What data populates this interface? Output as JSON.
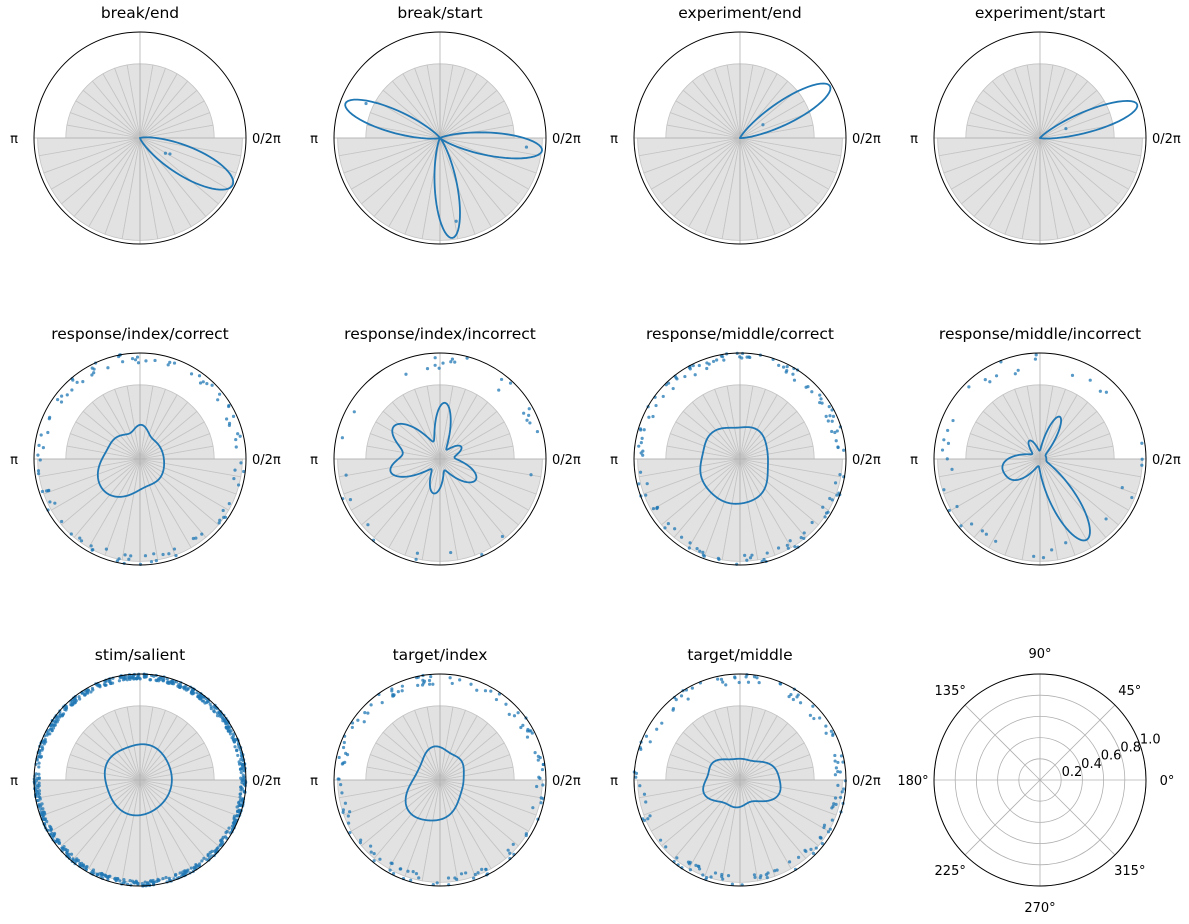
{
  "colors": {
    "kde_line": "#1f77b4",
    "points": "#1f77b4",
    "wedge_fill": "#e2e2e2",
    "wedge_edge": "#c4c4c4",
    "grid": "#b0b0b0",
    "axis_spine": "#000000"
  },
  "chart_data": [
    {
      "type": "polar-kde",
      "title": "break/end",
      "left_label": "π",
      "right_label": "0/2π",
      "peaks": [
        {
          "angle_deg": -27,
          "height": 0.98,
          "width_deg": 14
        }
      ],
      "points": [
        {
          "angle_deg": -28,
          "r": 0.32
        },
        {
          "angle_deg": -31,
          "r": 0.28
        }
      ]
    },
    {
      "type": "polar-kde",
      "title": "break/start",
      "left_label": "π",
      "right_label": "0/2π",
      "peaks": [
        {
          "angle_deg": 160,
          "height": 0.95,
          "width_deg": 11
        },
        {
          "angle_deg": -7,
          "height": 0.97,
          "width_deg": 11
        },
        {
          "angle_deg": -83,
          "height": 0.95,
          "width_deg": 11
        }
      ],
      "points": [
        {
          "angle_deg": 155,
          "r": 0.77
        },
        {
          "angle_deg": -6,
          "r": 0.82
        },
        {
          "angle_deg": -79,
          "r": 0.8
        }
      ]
    },
    {
      "type": "polar-kde",
      "title": "experiment/end",
      "left_label": "π",
      "right_label": "0/2π",
      "peaks": [
        {
          "angle_deg": 30,
          "height": 0.98,
          "width_deg": 11
        }
      ],
      "points": [
        {
          "angle_deg": 30,
          "r": 0.25
        }
      ]
    },
    {
      "type": "polar-kde",
      "title": "experiment/start",
      "left_label": "π",
      "right_label": "0/2π",
      "peaks": [
        {
          "angle_deg": 19,
          "height": 0.97,
          "width_deg": 10
        }
      ],
      "points": [
        {
          "angle_deg": 20,
          "r": 0.26
        }
      ]
    },
    {
      "type": "polar-kde",
      "title": "response/index/correct",
      "left_label": "π",
      "right_label": "0/2π",
      "base": 0.22,
      "peaks": [
        {
          "angle_deg": 200,
          "height": 0.15,
          "width_deg": 28
        },
        {
          "angle_deg": 235,
          "height": 0.14,
          "width_deg": 25
        },
        {
          "angle_deg": 88,
          "height": 0.1,
          "width_deg": 12
        },
        {
          "angle_deg": 140,
          "height": 0.07,
          "width_deg": 20
        },
        {
          "angle_deg": 310,
          "height": 0.04,
          "width_deg": 25
        }
      ],
      "scatter": {
        "count": 100,
        "seed": 11,
        "r_min": 0.9,
        "r_max": 1.0
      }
    },
    {
      "type": "polar-kde",
      "title": "response/index/incorrect",
      "left_label": "π",
      "right_label": "0/2π",
      "base": 0.05,
      "peaks": [
        {
          "angle_deg": 85,
          "height": 0.48,
          "width_deg": 12
        },
        {
          "angle_deg": 145,
          "height": 0.48,
          "width_deg": 18
        },
        {
          "angle_deg": 195,
          "height": 0.42,
          "width_deg": 16
        },
        {
          "angle_deg": 260,
          "height": 0.28,
          "width_deg": 15
        },
        {
          "angle_deg": 330,
          "height": 0.34,
          "width_deg": 18
        },
        {
          "angle_deg": 30,
          "height": 0.18,
          "width_deg": 14
        }
      ],
      "scatter": {
        "count": 32,
        "seed": 23,
        "r_min": 0.85,
        "r_max": 1.0
      }
    },
    {
      "type": "polar-kde",
      "title": "response/middle/correct",
      "left_label": "π",
      "right_label": "0/2π",
      "base": 0.26,
      "peaks": [
        {
          "angle_deg": 140,
          "height": 0.1,
          "width_deg": 25
        },
        {
          "angle_deg": 205,
          "height": 0.12,
          "width_deg": 25
        },
        {
          "angle_deg": 255,
          "height": 0.14,
          "width_deg": 25
        },
        {
          "angle_deg": 300,
          "height": 0.1,
          "width_deg": 22
        },
        {
          "angle_deg": 60,
          "height": 0.06,
          "width_deg": 22
        }
      ],
      "scatter": {
        "count": 130,
        "seed": 37,
        "r_min": 0.9,
        "r_max": 1.0
      }
    },
    {
      "type": "polar-kde",
      "title": "response/middle/incorrect",
      "left_label": "π",
      "right_label": "0/2π",
      "base": 0.06,
      "peaks": [
        {
          "angle_deg": -60,
          "height": 0.82,
          "width_deg": 13
        },
        {
          "angle_deg": 65,
          "height": 0.38,
          "width_deg": 10
        },
        {
          "angle_deg": 120,
          "height": 0.14,
          "width_deg": 12
        },
        {
          "angle_deg": 190,
          "height": 0.28,
          "width_deg": 18
        },
        {
          "angle_deg": 220,
          "height": 0.18,
          "width_deg": 14
        }
      ],
      "scatter": {
        "count": 38,
        "seed": 51,
        "r_min": 0.82,
        "r_max": 1.0
      }
    },
    {
      "type": "polar-kde",
      "title": "stim/salient",
      "left_label": "π",
      "right_label": "0/2π",
      "base": 0.3,
      "peaks": [
        {
          "angle_deg": 75,
          "height": 0.04,
          "width_deg": 25
        },
        {
          "angle_deg": 150,
          "height": 0.05,
          "width_deg": 25
        },
        {
          "angle_deg": 250,
          "height": 0.04,
          "width_deg": 30
        }
      ],
      "scatter": {
        "count": 700,
        "seed": 67,
        "r_min": 0.95,
        "r_max": 1.0
      }
    },
    {
      "type": "polar-kde",
      "title": "target/index",
      "left_label": "π",
      "right_label": "0/2π",
      "base": 0.22,
      "peaks": [
        {
          "angle_deg": 225,
          "height": 0.18,
          "width_deg": 25
        },
        {
          "angle_deg": 275,
          "height": 0.12,
          "width_deg": 25
        },
        {
          "angle_deg": 100,
          "height": 0.1,
          "width_deg": 20
        },
        {
          "angle_deg": 45,
          "height": 0.05,
          "width_deg": 18
        }
      ],
      "scatter": {
        "count": 130,
        "seed": 79,
        "r_min": 0.9,
        "r_max": 1.0
      }
    },
    {
      "type": "polar-kde",
      "title": "target/middle",
      "left_label": "π",
      "right_label": "0/2π",
      "base": 0.2,
      "peaks": [
        {
          "angle_deg": 200,
          "height": 0.16,
          "width_deg": 20
        },
        {
          "angle_deg": 340,
          "height": 0.18,
          "width_deg": 20
        },
        {
          "angle_deg": 20,
          "height": 0.12,
          "width_deg": 18
        },
        {
          "angle_deg": 150,
          "height": 0.1,
          "width_deg": 18
        },
        {
          "angle_deg": 260,
          "height": 0.06,
          "width_deg": 20
        }
      ],
      "scatter": {
        "count": 130,
        "seed": 97,
        "r_min": 0.9,
        "r_max": 1.0
      }
    },
    {
      "type": "polar-axes",
      "angle_labels": [
        "0°",
        "45°",
        "90°",
        "135°",
        "180°",
        "225°",
        "270°",
        "315°"
      ],
      "angle_values_deg": [
        0,
        45,
        90,
        135,
        180,
        225,
        270,
        315
      ],
      "radial_labels": [
        "0.2",
        "0.4",
        "0.6",
        "0.8",
        "1.0"
      ],
      "radial_values": [
        0.2,
        0.4,
        0.6,
        0.8,
        1.0
      ],
      "rlim": [
        0,
        1
      ]
    }
  ]
}
